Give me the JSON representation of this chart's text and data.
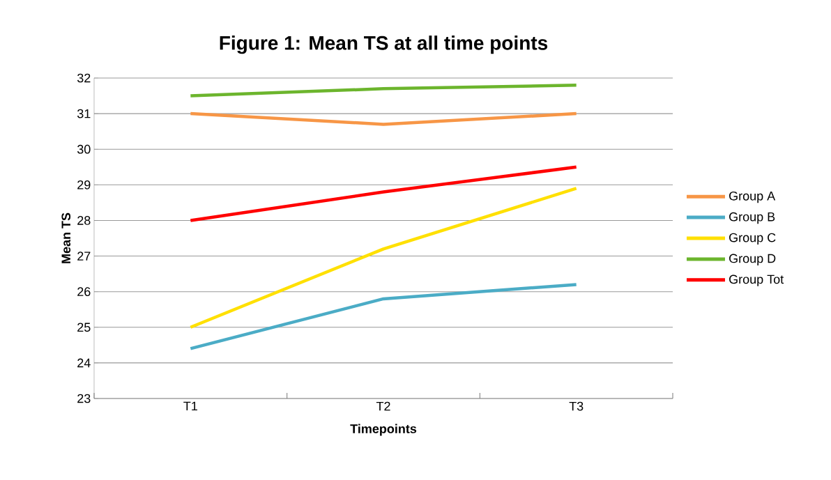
{
  "chart_data": {
    "type": "line",
    "title": "Figure 1: Mean TS at all time points",
    "xlabel": "Timepoints",
    "ylabel": "Mean TS",
    "categories": [
      "T1",
      "T2",
      "T3"
    ],
    "series": [
      {
        "name": "Group A",
        "color": "#f79646",
        "values": [
          31,
          30.7,
          31
        ]
      },
      {
        "name": "Group B",
        "color": "#4bacc6",
        "values": [
          24.4,
          25.8,
          26.2
        ]
      },
      {
        "name": "Group C",
        "color": "#ffe000",
        "values": [
          25,
          27.2,
          28.9
        ]
      },
      {
        "name": "Group D",
        "color": "#6cb52d",
        "values": [
          31.5,
          31.7,
          31.8
        ]
      },
      {
        "name": "Group Tot",
        "color": "#ff0000",
        "values": [
          28,
          28.8,
          29.5
        ]
      }
    ],
    "ylim": [
      23,
      32
    ],
    "yticks": [
      23,
      24,
      25,
      26,
      27,
      28,
      29,
      30,
      31,
      32
    ],
    "grid": "y",
    "legend": "right",
    "line_style": "solid"
  }
}
